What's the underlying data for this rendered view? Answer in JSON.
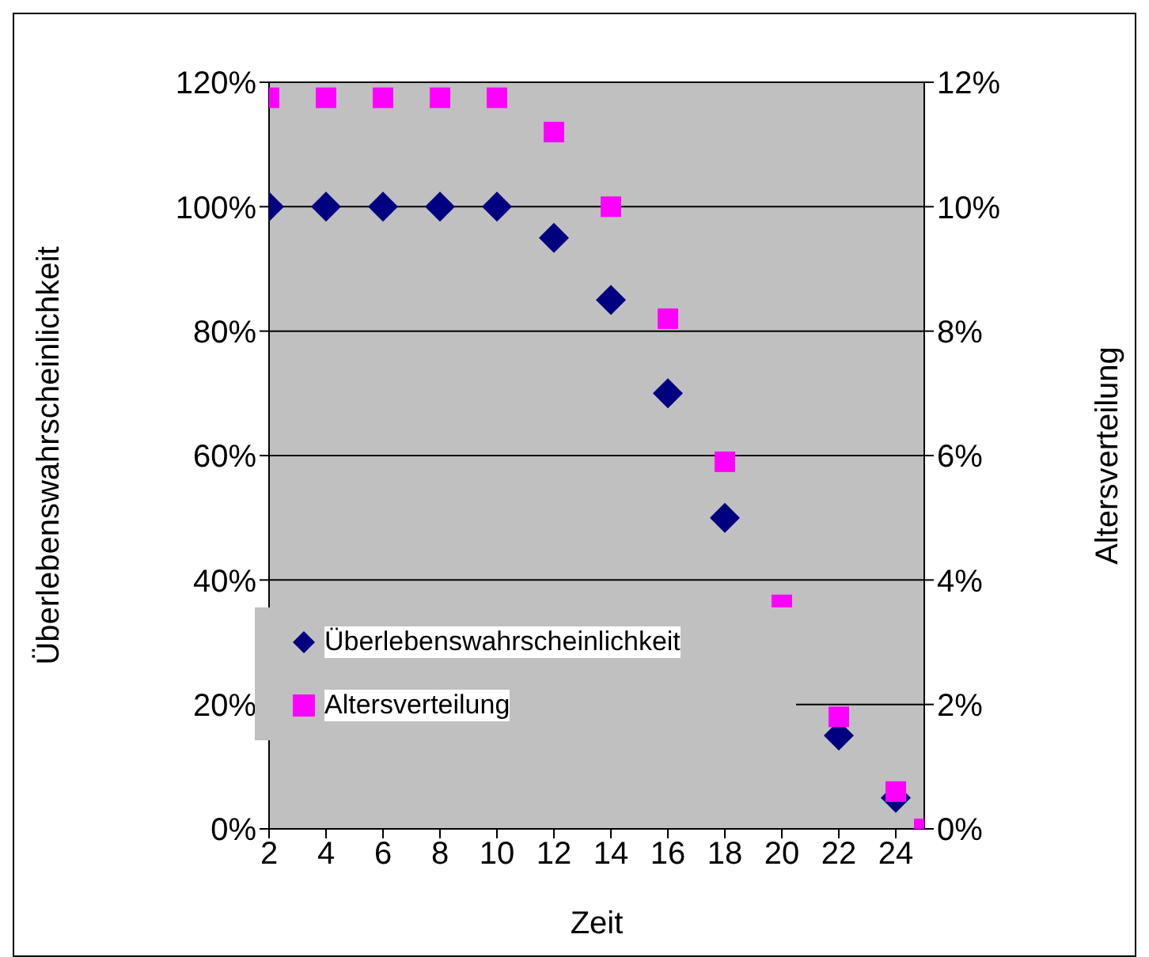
{
  "chart_data": {
    "type": "scatter",
    "xlabel": "Zeit",
    "ylabel": "Überlebenswahrscheinlichkeit",
    "y2label": "Altersverteilung",
    "x": [
      2,
      4,
      6,
      8,
      10,
      12,
      14,
      16,
      18,
      20,
      22,
      24,
      25
    ],
    "xlim": [
      2,
      25
    ],
    "xticks": [
      2,
      4,
      6,
      8,
      10,
      12,
      14,
      16,
      18,
      20,
      22,
      24
    ],
    "ylim": [
      0,
      120
    ],
    "yticks": [
      {
        "value": 0,
        "label": "0%"
      },
      {
        "value": 20,
        "label": "20%"
      },
      {
        "value": 40,
        "label": "40%"
      },
      {
        "value": 60,
        "label": "60%"
      },
      {
        "value": 80,
        "label": "80%"
      },
      {
        "value": 100,
        "label": "100%"
      },
      {
        "value": 120,
        "label": "120%"
      }
    ],
    "y2lim": [
      0,
      12
    ],
    "y2ticks": [
      {
        "value": 0,
        "label": "0%"
      },
      {
        "value": 2,
        "label": "2%"
      },
      {
        "value": 4,
        "label": "4%"
      },
      {
        "value": 6,
        "label": "6%"
      },
      {
        "value": 8,
        "label": "8%"
      },
      {
        "value": 10,
        "label": "10%"
      },
      {
        "value": 12,
        "label": "12%"
      }
    ],
    "grid": "y",
    "legend": "bottom left",
    "series": [
      {
        "name": "Überlebenswahrscheinlichkeit",
        "color": "#000080",
        "marker": "diamond",
        "values": [
          100,
          100,
          100,
          100,
          100,
          95,
          85,
          70,
          50,
          null,
          15,
          5,
          null
        ]
      },
      {
        "name": "Altersverteilung",
        "color": "#ff00ff",
        "marker": "square",
        "axis": "y2",
        "values": [
          11.75,
          11.75,
          11.75,
          11.75,
          11.75,
          11.2,
          10,
          8.2,
          5.9,
          3.6,
          1.8,
          0.6,
          0
        ]
      }
    ]
  }
}
